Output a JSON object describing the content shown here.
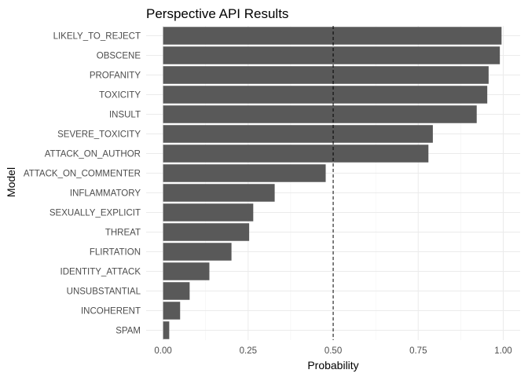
{
  "chart_data": {
    "type": "bar",
    "orientation": "horizontal",
    "title": "Perspective API Results",
    "xlabel": "Probability",
    "ylabel": "Model",
    "xlim": [
      0,
      1
    ],
    "x_ticks": [
      "0.00",
      "0.25",
      "0.50",
      "0.75",
      "1.00"
    ],
    "x_tick_values": [
      0,
      0.25,
      0.5,
      0.75,
      1.0
    ],
    "reference_line": {
      "x": 0.5,
      "style": "dashed"
    },
    "grid": true,
    "categories": [
      "LIKELY_TO_REJECT",
      "OBSCENE",
      "PROFANITY",
      "TOXICITY",
      "INSULT",
      "SEVERE_TOXICITY",
      "ATTACK_ON_AUTHOR",
      "ATTACK_ON_COMMENTER",
      "INFLAMMATORY",
      "SEXUALLY_EXPLICIT",
      "THREAT",
      "FLIRTATION",
      "IDENTITY_ATTACK",
      "UNSUBSTANTIAL",
      "INCOHERENT",
      "SPAM"
    ],
    "values": [
      0.995,
      0.99,
      0.957,
      0.953,
      0.922,
      0.793,
      0.78,
      0.478,
      0.328,
      0.265,
      0.253,
      0.201,
      0.136,
      0.078,
      0.05,
      0.018
    ],
    "colors": {
      "bar": "#595959",
      "grid": "#ebebeb",
      "background": "#ffffff"
    }
  }
}
